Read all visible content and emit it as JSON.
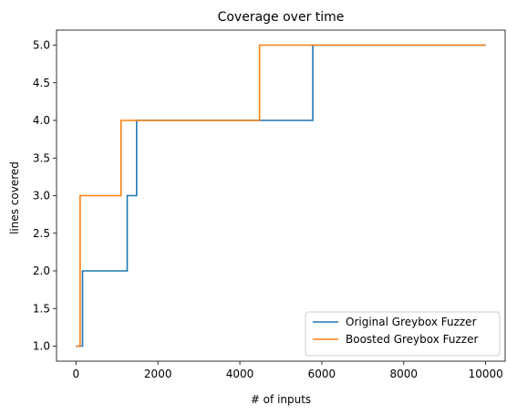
{
  "chart_data": {
    "type": "line",
    "step": "post",
    "title": "Coverage over time",
    "xlabel": "# of inputs",
    "ylabel": "lines covered",
    "xlim": [
      -475,
      10475
    ],
    "ylim": [
      0.8,
      5.2
    ],
    "xticks": [
      0,
      2000,
      4000,
      6000,
      8000,
      10000
    ],
    "xtick_labels": [
      "0",
      "2000",
      "4000",
      "6000",
      "8000",
      "10000"
    ],
    "yticks": [
      1.0,
      1.5,
      2.0,
      2.5,
      3.0,
      3.5,
      4.0,
      4.5,
      5.0
    ],
    "ytick_labels": [
      "1.0",
      "1.5",
      "2.0",
      "2.5",
      "3.0",
      "3.5",
      "4.0",
      "4.5",
      "5.0"
    ],
    "grid": false,
    "legend_position": "lower-right",
    "series": [
      {
        "name": "Original Greybox Fuzzer",
        "color": "#1f77b4",
        "x": [
          0,
          160,
          1250,
          1480,
          5780,
          10000
        ],
        "y": [
          1,
          2,
          3,
          4,
          5,
          5
        ]
      },
      {
        "name": "Boosted Greybox Fuzzer",
        "color": "#ff7f0e",
        "x": [
          0,
          100,
          1100,
          4480,
          10000
        ],
        "y": [
          1,
          3,
          4,
          5,
          5
        ]
      }
    ]
  }
}
